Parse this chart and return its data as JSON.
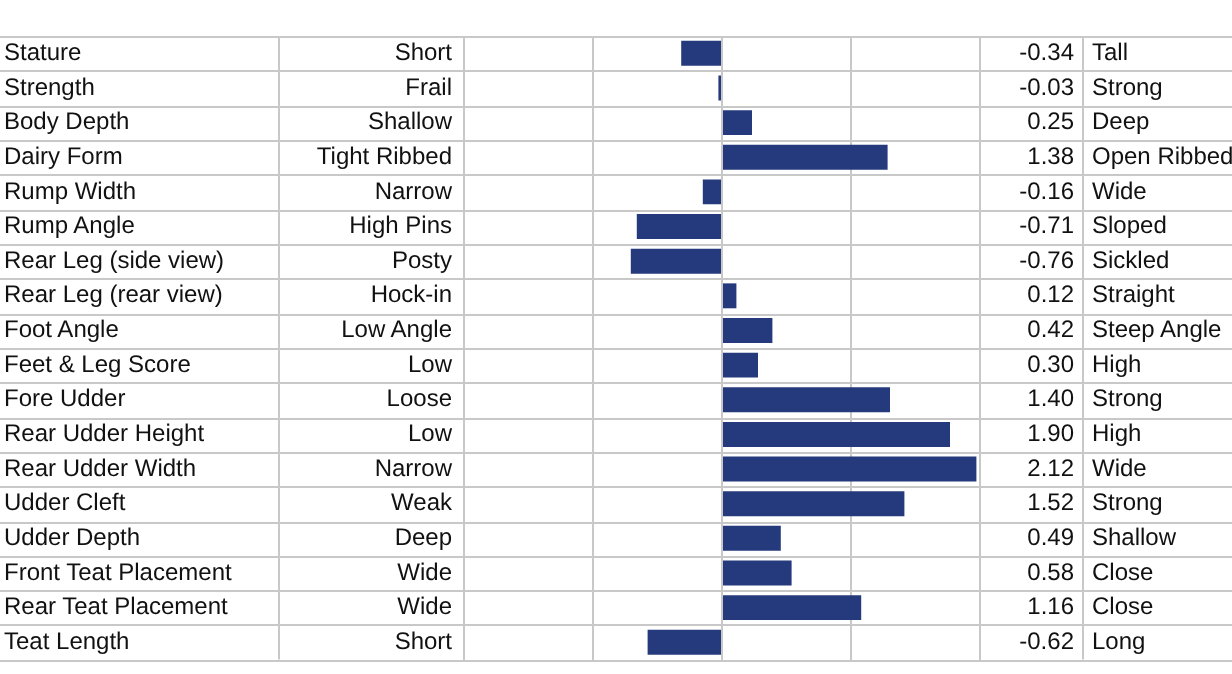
{
  "chart_data": {
    "type": "bar",
    "orientation": "horizontal",
    "categories": [
      "Stature",
      "Strength",
      "Body Depth",
      "Dairy Form",
      "Rump Width",
      "Rump Angle",
      "Rear Leg (side view)",
      "Rear Leg (rear view)",
      "Foot Angle",
      "Feet & Leg Score",
      "Fore Udder",
      "Rear Udder Height",
      "Rear Udder Width",
      "Udder Cleft",
      "Udder Depth",
      "Front Teat Placement",
      "Rear Teat Placement",
      "Teat Length"
    ],
    "values": [
      -0.34,
      -0.03,
      0.25,
      1.38,
      -0.16,
      -0.71,
      -0.76,
      0.12,
      0.42,
      0.3,
      1.4,
      1.9,
      2.12,
      1.52,
      0.49,
      0.58,
      1.16,
      -0.62
    ],
    "value_labels": [
      "-0.34",
      "-0.03",
      "0.25",
      "1.38",
      "-0.16",
      "-0.71",
      "-0.76",
      "0.12",
      "0.42",
      "0.30",
      "1.40",
      "1.90",
      "2.12",
      "1.52",
      "0.49",
      "0.58",
      "1.16",
      "-0.62"
    ],
    "color": "#253a7d",
    "xlim": [
      -2.15,
      2.15
    ],
    "xticks": [
      {
        "value": -2.15,
        "label": null
      },
      {
        "value": -1.075,
        "label": null
      },
      {
        "value": 0,
        "label": null
      },
      {
        "value": 1.075,
        "label": null
      },
      {
        "value": 2.15,
        "label": null
      }
    ],
    "tick_labels": "y",
    "grid": true,
    "legend": false,
    "annotations": [
      "Short",
      "Frail",
      "Shallow",
      "Tight Ribbed",
      "Narrow",
      "High Pins",
      "Posty",
      "Hock-in",
      "Low Angle",
      "Low",
      "Loose",
      "Low",
      "Narrow",
      "Weak",
      "Deep",
      "Wide",
      "Wide",
      "Short",
      "Tall",
      "Strong",
      "Deep",
      "Open Ribbed",
      "Wide",
      "Sloped",
      "Sickled",
      "Straight",
      "Steep Angle",
      "High",
      "Strong",
      "High",
      "Wide",
      "Strong",
      "Shallow",
      "Close",
      "Close",
      "Long"
    ]
  }
}
